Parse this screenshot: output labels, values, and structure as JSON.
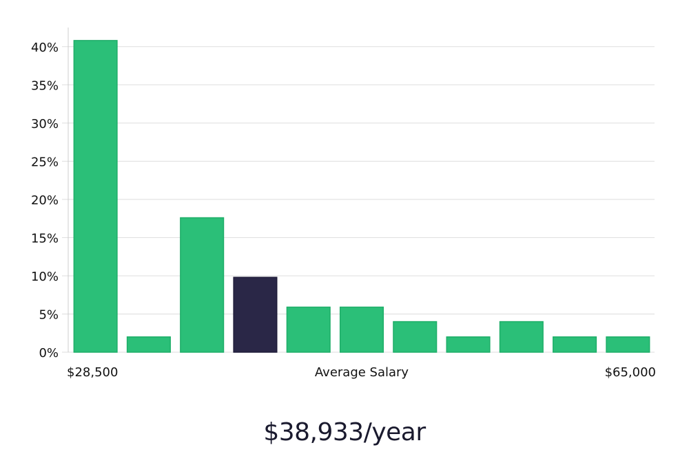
{
  "chart_data": {
    "type": "bar",
    "categories": [
      "1",
      "2",
      "3",
      "4",
      "5",
      "6",
      "7",
      "8",
      "9",
      "10",
      "11"
    ],
    "values": [
      40.8,
      2.0,
      17.6,
      9.8,
      5.9,
      5.9,
      4.0,
      2.0,
      4.0,
      2.0,
      2.0
    ],
    "highlight_index": 3,
    "colors": {
      "bar": "#2bbf78",
      "bar_edge": "#1fae69",
      "highlight": "#2a2747",
      "grid": "#dddddd",
      "axis": "#cccccc"
    },
    "ylim": [
      0,
      42.5
    ],
    "yticks": [
      0,
      5,
      10,
      15,
      20,
      25,
      30,
      35,
      40
    ],
    "ytick_suffix": "%",
    "x_min_label": "$28,500",
    "xlabel": "Average Salary",
    "x_max_label": "$65,000",
    "grid": true
  },
  "summary": {
    "average": "$38,933/year"
  }
}
